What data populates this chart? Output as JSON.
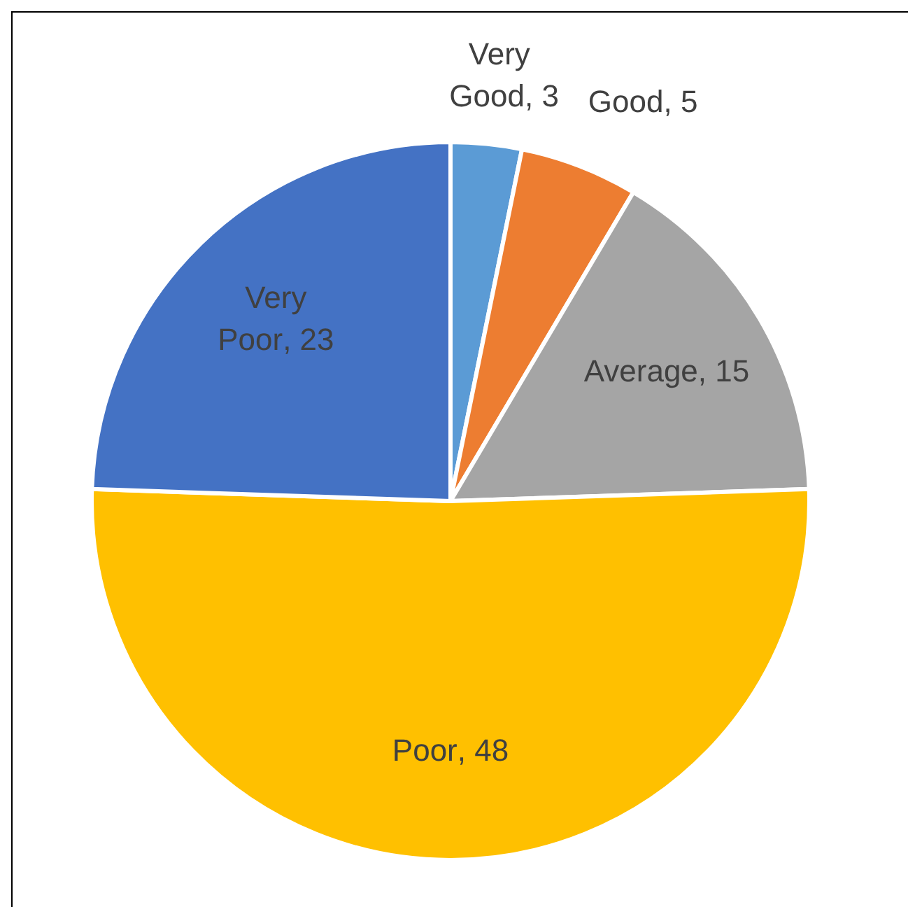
{
  "chart_data": {
    "type": "pie",
    "categories": [
      "Very Good",
      "Good",
      "Average",
      "Poor",
      "Very Poor"
    ],
    "values": [
      3,
      5,
      15,
      48,
      23
    ],
    "value_labels": [
      ", 3",
      ", 5",
      ", 15",
      ", 48",
      ", 23"
    ],
    "colors": [
      "#5b9bd5",
      "#ed7d31",
      "#a5a5a5",
      "#ffc000",
      "#4472c4"
    ],
    "legend": false
  }
}
